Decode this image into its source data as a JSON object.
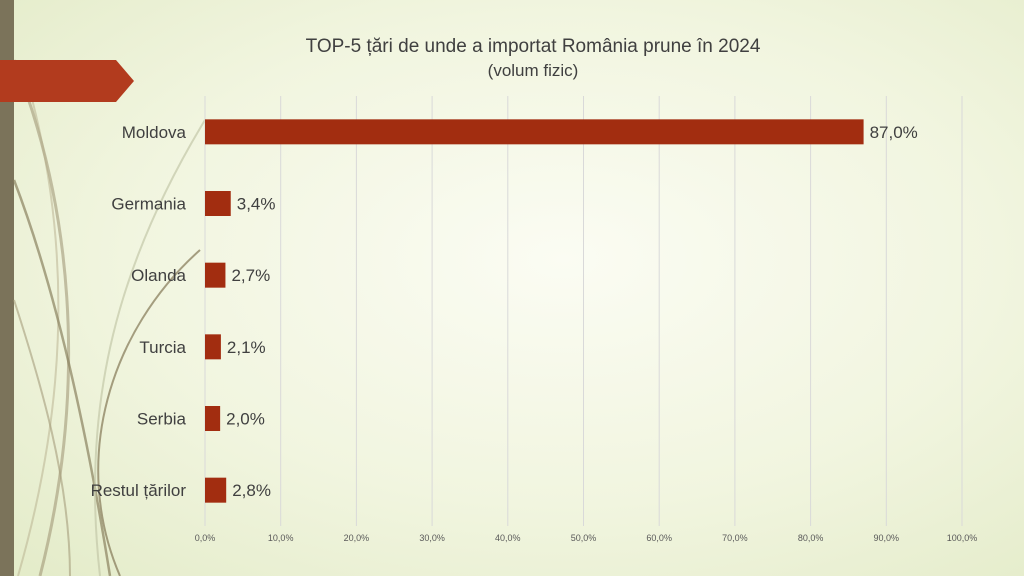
{
  "slide": {
    "title": "TOP-5 țări de unde a importat România prune în 2024",
    "subtitle": "(volum fizic)",
    "colors": {
      "bar": "#a22d10",
      "accent_tab": "#b23b1e",
      "side_bar": "#7b735a",
      "gridline": "#d9d9d9"
    }
  },
  "chart_data": {
    "type": "bar",
    "orientation": "horizontal",
    "title": "TOP-5 țări de unde a importat România prune în 2024",
    "subtitle": "(volum fizic)",
    "categories": [
      "Moldova",
      "Germania",
      "Olanda",
      "Turcia",
      "Serbia",
      "Restul țărilor"
    ],
    "values": [
      87.0,
      3.4,
      2.7,
      2.1,
      2.0,
      2.8
    ],
    "value_labels": [
      "87,0%",
      "3,4%",
      "2,7%",
      "2,1%",
      "2,0%",
      "2,8%"
    ],
    "xlim": [
      0,
      100
    ],
    "xticks": [
      0,
      10,
      20,
      30,
      40,
      50,
      60,
      70,
      80,
      90,
      100
    ],
    "xtick_labels": [
      "0,0%",
      "10,0%",
      "20,0%",
      "30,0%",
      "40,0%",
      "50,0%",
      "60,0%",
      "70,0%",
      "80,0%",
      "90,0%",
      "100,0%"
    ],
    "grid": true,
    "legend": "none"
  }
}
